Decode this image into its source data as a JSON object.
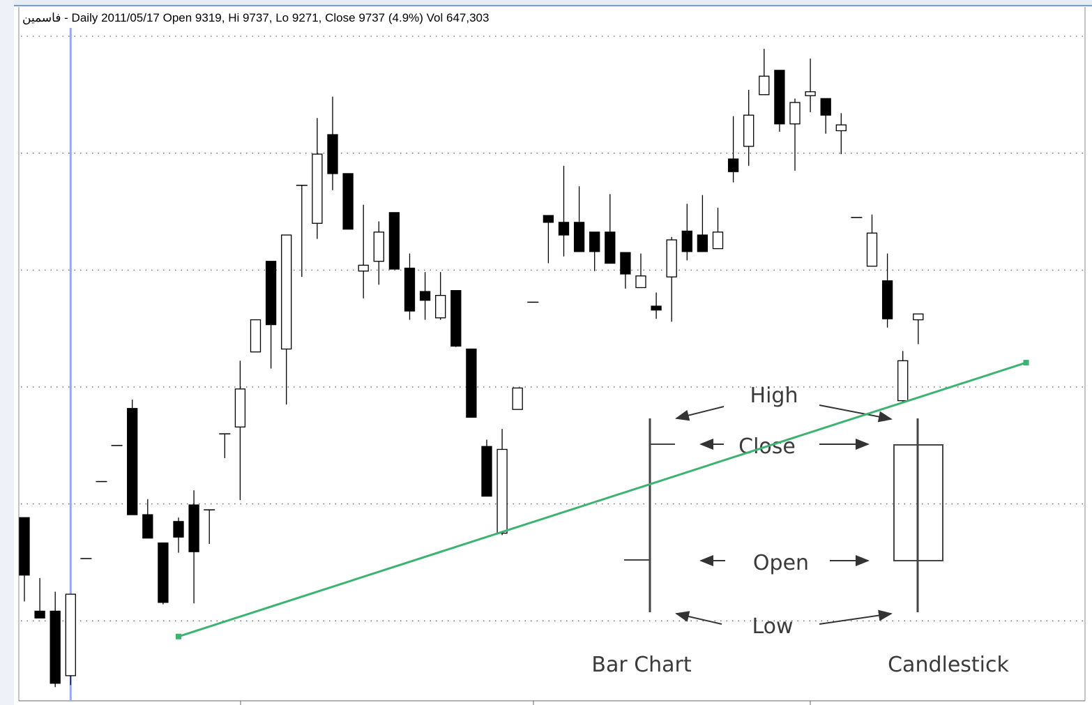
{
  "chart_data": {
    "type": "candlestick",
    "title": "فاسمين - Daily 2011/05/17 Open 9319, Hi 9737, Lo 9271, Close 9737 (4.9%) Vol 647,303",
    "categories": [
      null,
      null,
      null,
      null,
      null,
      null,
      null,
      null,
      null,
      null,
      null,
      null,
      null,
      null,
      null,
      null,
      null,
      null,
      null,
      null,
      null,
      null,
      null,
      null,
      null,
      null,
      null,
      null,
      null,
      null,
      null,
      null,
      null,
      null,
      null,
      null,
      null,
      null,
      null,
      null,
      null,
      null,
      null,
      null,
      null,
      null,
      null,
      null,
      null,
      null,
      null,
      null,
      null,
      null,
      null,
      null,
      null,
      null,
      null
    ],
    "open": [
      10130,
      9650,
      9650,
      9319,
      9920,
      10315,
      10500,
      10690,
      10145,
      10000,
      10110,
      10195,
      10170,
      10560,
      10595,
      10980,
      11445,
      10995,
      11835,
      11640,
      12095,
      11895,
      11395,
      11445,
      11695,
      11410,
      11290,
      11155,
      11295,
      10995,
      10495,
      10050,
      10685,
      11235,
      11680,
      11645,
      11645,
      11595,
      11595,
      11490,
      11310,
      11215,
      11365,
      11600,
      11580,
      11510,
      11970,
      12035,
      12300,
      12425,
      12150,
      12295,
      12280,
      12115,
      11670,
      11420,
      11345,
      10730,
      11145
    ],
    "high": [
      10130,
      9820,
      9750,
      9737,
      9920,
      10315,
      10500,
      10735,
      10225,
      10000,
      10130,
      10270,
      10170,
      10560,
      10935,
      11145,
      11445,
      11580,
      11835,
      12180,
      12290,
      11895,
      11735,
      11650,
      11695,
      11485,
      11390,
      11390,
      11295,
      10995,
      10530,
      10585,
      10795,
      11235,
      11680,
      11935,
      11830,
      11595,
      11790,
      11490,
      11485,
      11285,
      11570,
      11740,
      11785,
      11720,
      12190,
      12325,
      12535,
      12425,
      12280,
      12485,
      12280,
      12205,
      11670,
      11685,
      11485,
      10985,
      11175
    ],
    "low": [
      9700,
      9615,
      9260,
      9271,
      9920,
      10315,
      10500,
      10145,
      10025,
      9685,
      9950,
      9690,
      9995,
      10435,
      10220,
      10980,
      10895,
      10710,
      11365,
      11560,
      11810,
      11610,
      11255,
      11325,
      11405,
      11145,
      11145,
      11145,
      11005,
      10645,
      10240,
      10040,
      10685,
      11235,
      11435,
      11470,
      11495,
      11395,
      11435,
      11305,
      11310,
      11150,
      11135,
      11450,
      11495,
      11510,
      11850,
      11935,
      12300,
      12110,
      11910,
      12210,
      12100,
      11995,
      11670,
      11420,
      11105,
      10720,
      11020
    ],
    "close": [
      9835,
      9615,
      9280,
      9737,
      9920,
      10315,
      10500,
      10145,
      10025,
      9695,
      10030,
      9955,
      10170,
      10560,
      10790,
      11145,
      11120,
      11580,
      11835,
      11995,
      11895,
      11610,
      11425,
      11595,
      11405,
      11190,
      11245,
      11270,
      11010,
      10645,
      10240,
      10480,
      10795,
      11235,
      11645,
      11580,
      11495,
      11495,
      11435,
      11380,
      11370,
      11195,
      11555,
      11495,
      11495,
      11595,
      11905,
      12195,
      12395,
      12150,
      12260,
      12315,
      12195,
      12145,
      11670,
      11590,
      11150,
      10935,
      11175
    ],
    "up_color": "#ffffff",
    "down_color": "#000000",
    "ylim": [
      9190,
      12750
    ],
    "yticks": [
      9600,
      10200,
      10800,
      11400,
      12000,
      12600
    ],
    "grid": true,
    "trendline": {
      "color": "#3cb371",
      "x": [
        10,
        65
      ],
      "values": [
        9520,
        10925
      ]
    },
    "annotations": [
      "High",
      "Close",
      "Open",
      "Low",
      "Bar Chart",
      "Candlestick"
    ]
  }
}
